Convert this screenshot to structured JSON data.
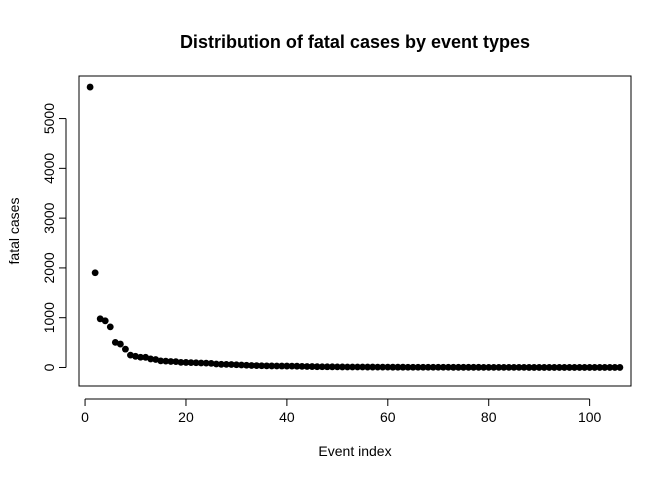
{
  "chart_data": {
    "type": "scatter",
    "title": "Distribution of fatal cases by event types",
    "xlabel": "Event index",
    "ylabel": "fatal cases",
    "xlim": [
      -1.2,
      108.2
    ],
    "ylim": [
      -372,
      5855
    ],
    "xticks": [
      0,
      20,
      40,
      60,
      80,
      100
    ],
    "yticks": [
      0,
      1000,
      2000,
      3000,
      4000,
      5000
    ],
    "grid": false,
    "legend": "none",
    "marker_color": "#000000",
    "series": [
      {
        "x": [
          1,
          2,
          3,
          4,
          5,
          6,
          7,
          8,
          9,
          10,
          11,
          12,
          13,
          14,
          15,
          16,
          17,
          18,
          19,
          20,
          21,
          22,
          23,
          24,
          25,
          26,
          27,
          28,
          29,
          30,
          31,
          32,
          33,
          34,
          35,
          36,
          37,
          38,
          39,
          40,
          41,
          42,
          43,
          44,
          45,
          46,
          47,
          48,
          49,
          50,
          51,
          52,
          53,
          54,
          55,
          56,
          57,
          58,
          59,
          60,
          61,
          62,
          63,
          64,
          65,
          66,
          67,
          68,
          69,
          70,
          71,
          72,
          73,
          74,
          75,
          76,
          77,
          78,
          79,
          80,
          81,
          82,
          83,
          84,
          85,
          86,
          87,
          88,
          89,
          90,
          91,
          92,
          93,
          94,
          95,
          96,
          97,
          98,
          99,
          100,
          101,
          102,
          103,
          104,
          105,
          106
        ],
        "y": [
          5633,
          1903,
          978,
          937,
          816,
          504,
          470,
          368,
          248,
          224,
          206,
          204,
          172,
          160,
          133,
          127,
          120,
          117,
          103,
          101,
          98,
          95,
          90,
          88,
          82,
          70,
          64,
          62,
          60,
          55,
          50,
          45,
          40,
          38,
          35,
          33,
          31,
          30,
          29,
          28,
          27,
          26,
          22,
          20,
          18,
          16,
          15,
          14,
          13,
          12,
          11,
          10,
          10,
          9,
          9,
          8,
          8,
          7,
          7,
          7,
          6,
          6,
          6,
          5,
          5,
          5,
          5,
          4,
          4,
          4,
          4,
          4,
          3,
          3,
          3,
          3,
          3,
          3,
          2,
          2,
          2,
          2,
          2,
          2,
          2,
          2,
          2,
          1,
          1,
          1,
          1,
          1,
          1,
          1,
          1,
          1,
          1,
          1,
          1,
          1,
          1,
          1,
          1,
          1,
          1,
          1
        ]
      }
    ]
  }
}
